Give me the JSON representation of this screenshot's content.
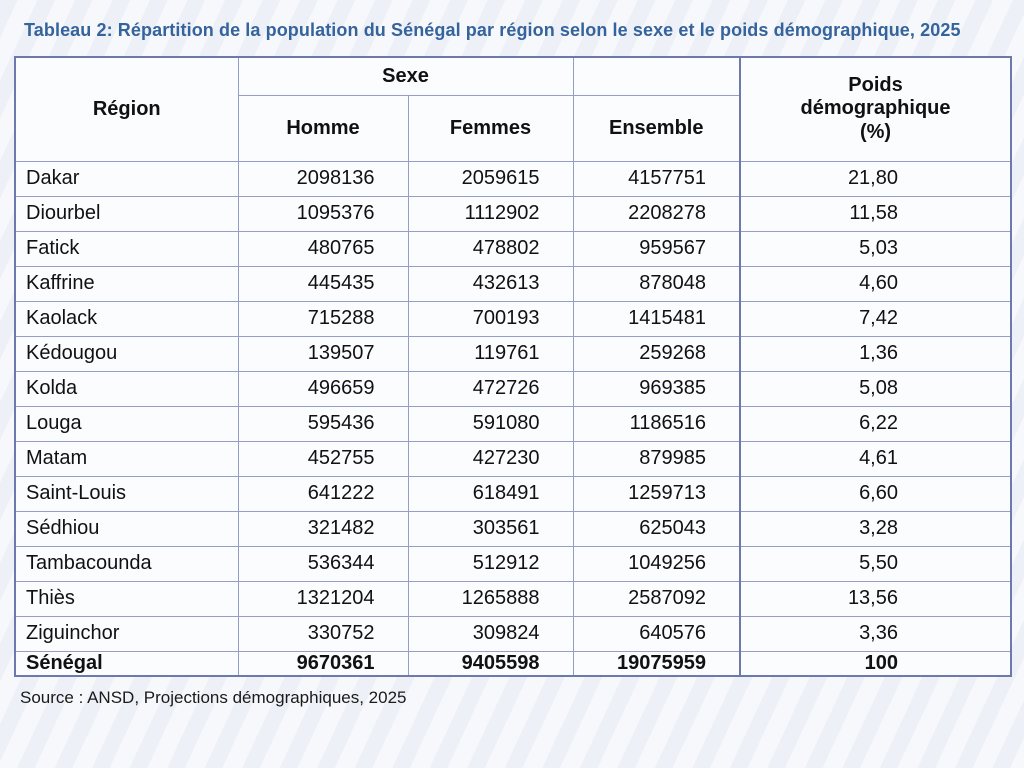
{
  "title": "Tableau 2: Répartition de la population du Sénégal par région selon le sexe et le poids démographique, 2025",
  "source": "Source : ANSD, Projections démographiques, 2025",
  "colors": {
    "title_text": "#35639c",
    "border_outer": "#6d78ad",
    "border_inner": "#959dc8",
    "cell_background": "#fbfcfe",
    "page_background": "#edf1f7",
    "body_text": "#111111"
  },
  "table": {
    "header": {
      "region": "Région",
      "sexe_group": "Sexe",
      "sexe_group_spacer": "",
      "homme": "Homme",
      "femmes": "Femmes",
      "ensemble": "Ensemble",
      "poids": "Poids\ndémographique\n(%)"
    },
    "columns_order": [
      "region",
      "homme",
      "femmes",
      "ensemble",
      "poids"
    ],
    "rows": [
      {
        "region": "Dakar",
        "homme": "2098136",
        "femmes": "2059615",
        "ensemble": "4157751",
        "poids": "21,80"
      },
      {
        "region": "Diourbel",
        "homme": "1095376",
        "femmes": "1112902",
        "ensemble": "2208278",
        "poids": "11,58"
      },
      {
        "region": "Fatick",
        "homme": "480765",
        "femmes": "478802",
        "ensemble": "959567",
        "poids": "5,03"
      },
      {
        "region": "Kaffrine",
        "homme": "445435",
        "femmes": "432613",
        "ensemble": "878048",
        "poids": "4,60"
      },
      {
        "region": "Kaolack",
        "homme": "715288",
        "femmes": "700193",
        "ensemble": "1415481",
        "poids": "7,42"
      },
      {
        "region": "Kédougou",
        "homme": "139507",
        "femmes": "119761",
        "ensemble": "259268",
        "poids": "1,36"
      },
      {
        "region": "Kolda",
        "homme": "496659",
        "femmes": "472726",
        "ensemble": "969385",
        "poids": "5,08"
      },
      {
        "region": "Louga",
        "homme": "595436",
        "femmes": "591080",
        "ensemble": "1186516",
        "poids": "6,22"
      },
      {
        "region": "Matam",
        "homme": "452755",
        "femmes": "427230",
        "ensemble": "879985",
        "poids": "4,61"
      },
      {
        "region": "Saint-Louis",
        "homme": "641222",
        "femmes": "618491",
        "ensemble": "1259713",
        "poids": "6,60"
      },
      {
        "region": "Sédhiou",
        "homme": "321482",
        "femmes": "303561",
        "ensemble": "625043",
        "poids": "3,28"
      },
      {
        "region": "Tambacounda",
        "homme": "536344",
        "femmes": "512912",
        "ensemble": "1049256",
        "poids": "5,50"
      },
      {
        "region": "Thiès",
        "homme": "1321204",
        "femmes": "1265888",
        "ensemble": "2587092",
        "poids": "13,56"
      },
      {
        "region": "Ziguinchor",
        "homme": "330752",
        "femmes": "309824",
        "ensemble": "640576",
        "poids": "3,36"
      }
    ],
    "total": {
      "region": "Sénégal",
      "homme": "9670361",
      "femmes": "9405598",
      "ensemble": "19075959",
      "poids": "100"
    }
  }
}
